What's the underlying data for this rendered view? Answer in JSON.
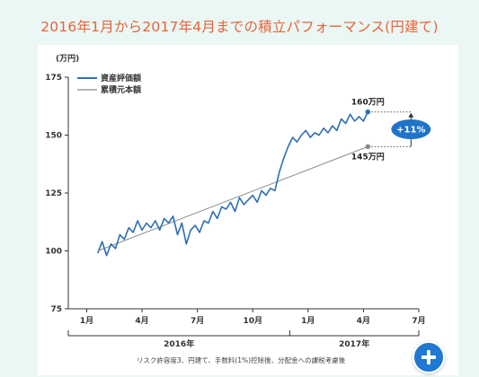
{
  "title": "2016年1月から2017年4月までの積立パフォーマンス(円建て)",
  "footnote": "リスク許容度3、円建て、手数料(1%)控除後、分配金への課税考慮後",
  "colors": {
    "title": "#e8633a",
    "asset": "#2e6fb4",
    "principal": "#8c8c8c",
    "badge": "#1f73c9",
    "fab": "#1f78d1"
  },
  "fab_icon": "plus-icon",
  "chart_data": {
    "type": "line",
    "y_unit": "(万円)",
    "ylim": [
      75,
      175
    ],
    "yticks": [
      75,
      100,
      125,
      150,
      175
    ],
    "xlim": [
      2015.917,
      2017.5
    ],
    "xticks": [
      {
        "x": 2016.0,
        "label": "1月"
      },
      {
        "x": 2016.25,
        "label": "4月"
      },
      {
        "x": 2016.5,
        "label": "7月"
      },
      {
        "x": 2016.75,
        "label": "10月"
      },
      {
        "x": 2017.0,
        "label": "1月"
      },
      {
        "x": 2017.25,
        "label": "4月"
      },
      {
        "x": 2017.5,
        "label": "7月"
      }
    ],
    "year_groups": [
      {
        "label": "2016年",
        "from": 2015.917,
        "to": 2016.917
      },
      {
        "label": "2017年",
        "from": 2016.917,
        "to": 2017.5
      }
    ],
    "grid": false,
    "legend": "top-left",
    "series": [
      {
        "name": "資産評価額",
        "x": [
          2016.05,
          2016.07,
          2016.09,
          2016.11,
          2016.13,
          2016.15,
          2016.17,
          2016.19,
          2016.21,
          2016.23,
          2016.25,
          2016.27,
          2016.29,
          2016.31,
          2016.33,
          2016.35,
          2016.37,
          2016.39,
          2016.41,
          2016.43,
          2016.45,
          2016.47,
          2016.49,
          2016.51,
          2016.53,
          2016.55,
          2016.57,
          2016.59,
          2016.61,
          2016.63,
          2016.65,
          2016.67,
          2016.69,
          2016.71,
          2016.73,
          2016.75,
          2016.77,
          2016.79,
          2016.81,
          2016.83,
          2016.85,
          2016.87,
          2016.89,
          2016.91,
          2016.93,
          2016.95,
          2016.97,
          2016.99,
          2017.01,
          2017.03,
          2017.05,
          2017.07,
          2017.09,
          2017.11,
          2017.13,
          2017.15,
          2017.17,
          2017.19,
          2017.21,
          2017.23,
          2017.25,
          2017.27
        ],
        "values": [
          99,
          104,
          98,
          103,
          101,
          107,
          105,
          110,
          108,
          113,
          109,
          112,
          110,
          113,
          109,
          114,
          112,
          115,
          107,
          112,
          103,
          109,
          111,
          108,
          113,
          112,
          117,
          114,
          119,
          118,
          121,
          117,
          123,
          120,
          122,
          124,
          121,
          126,
          124,
          127,
          126,
          134,
          140,
          145,
          149,
          147,
          150,
          152,
          149,
          151,
          150,
          153,
          151,
          154,
          152,
          157,
          155,
          159,
          156,
          158,
          156,
          160
        ],
        "end_label": "160万円"
      },
      {
        "name": "累積元本額",
        "x": [
          2016.05,
          2017.27
        ],
        "values": [
          100,
          145
        ],
        "end_label": "145万円"
      }
    ],
    "annotation": "+11%"
  }
}
